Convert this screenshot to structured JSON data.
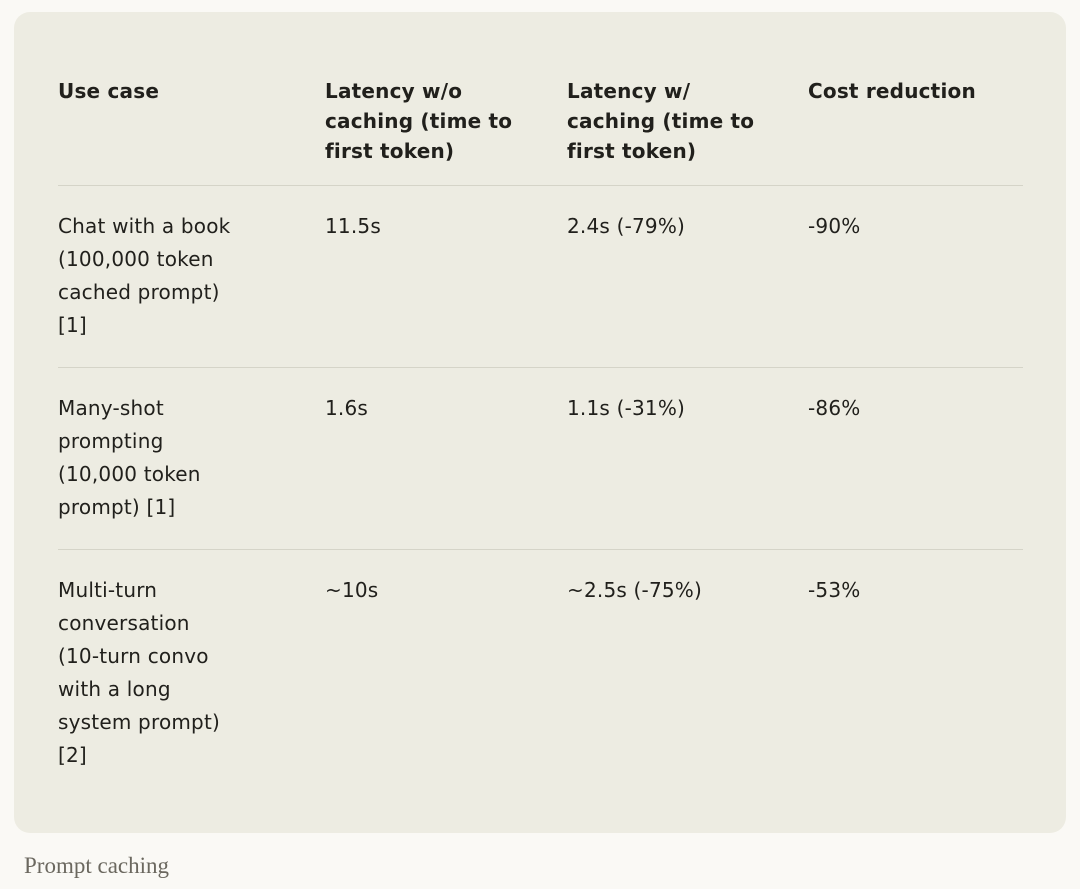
{
  "caption": "Prompt caching",
  "colors": {
    "page_background": "#FAF9F5",
    "card_background": "#EDECE2",
    "divider": "#D5D4C8",
    "text": "#21201C",
    "caption_text": "#6B685F"
  },
  "table": {
    "columns": [
      "Use case",
      "Latency w/o\ncaching (time to\nfirst token)",
      "Latency w/\ncaching (time to\nfirst token)",
      "Cost reduction"
    ],
    "rows": [
      {
        "use_case": "Chat with a book\n(100,000 token\ncached prompt)\n[1]",
        "latency_without": "11.5s",
        "latency_with": "2.4s (-79%)",
        "cost_reduction": "-90%"
      },
      {
        "use_case": "Many-shot\nprompting\n(10,000 token\nprompt) [1]",
        "latency_without": "1.6s",
        "latency_with": "1.1s (-31%)",
        "cost_reduction": "-86%"
      },
      {
        "use_case": "Multi-turn\nconversation\n(10-turn convo\nwith a long\nsystem prompt)\n[2]",
        "latency_without": "~10s",
        "latency_with": "~2.5s (-75%)",
        "cost_reduction": "-53%"
      }
    ]
  }
}
